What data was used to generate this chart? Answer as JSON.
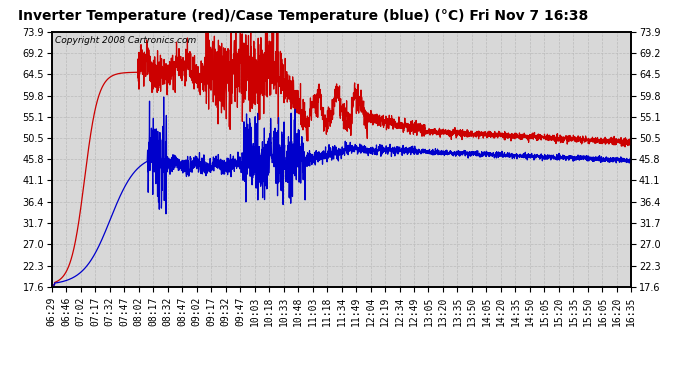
{
  "title": "Inverter Temperature (red)/Case Temperature (blue) (°C) Fri Nov 7 16:38",
  "copyright": "Copyright 2008 Cartronics.com",
  "y_ticks": [
    17.6,
    22.3,
    27.0,
    31.7,
    36.4,
    41.1,
    45.8,
    50.5,
    55.1,
    59.8,
    64.5,
    69.2,
    73.9
  ],
  "ylim": [
    17.6,
    73.9
  ],
  "x_labels": [
    "06:29",
    "06:46",
    "07:02",
    "07:17",
    "07:32",
    "07:47",
    "08:02",
    "08:17",
    "08:32",
    "08:47",
    "09:02",
    "09:17",
    "09:32",
    "09:47",
    "10:03",
    "10:18",
    "10:33",
    "10:48",
    "11:03",
    "11:18",
    "11:34",
    "11:49",
    "12:04",
    "12:19",
    "12:34",
    "12:49",
    "13:05",
    "13:20",
    "13:35",
    "13:50",
    "14:05",
    "14:20",
    "14:35",
    "14:50",
    "15:05",
    "15:20",
    "15:35",
    "15:50",
    "16:05",
    "16:20",
    "16:35"
  ],
  "red_color": "#cc0000",
  "blue_color": "#0000cc",
  "grid_color": "#bbbbbb",
  "bg_color": "#ffffff",
  "plot_bg": "#d8d8d8",
  "title_fontsize": 10,
  "copyright_fontsize": 6.5,
  "tick_fontsize": 7,
  "line_width": 0.9
}
